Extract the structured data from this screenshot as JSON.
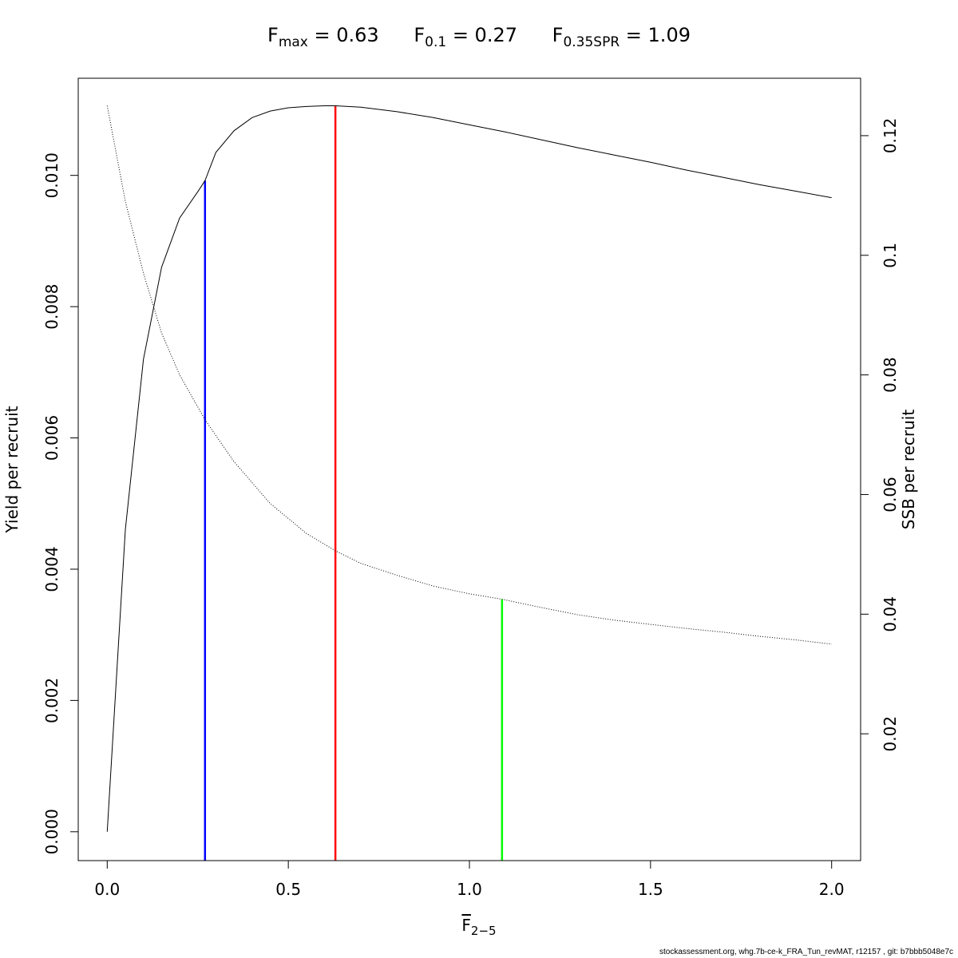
{
  "title": {
    "fmax": {
      "symbol": "F",
      "sub": "max",
      "eq": " = 0.63"
    },
    "f01": {
      "symbol": "F",
      "sub": "0.1",
      "eq": " = 0.27"
    },
    "fspr": {
      "symbol": "F",
      "sub": "0.35SPR",
      "eq": " = 1.09"
    }
  },
  "footer": "stockassessment.org, whg.7b-ce-k_FRA_Tun_revMAT, r12157 , git: b7bbb5048e7c",
  "chart_data": {
    "type": "line",
    "xlabel": {
      "symbol": "F",
      "sub": "2−5"
    },
    "ylabel_left": "Yield per recruit",
    "ylabel_right": "SSB per recruit",
    "xlim": [
      -0.08,
      2.08
    ],
    "ylim_left": [
      -0.00044,
      0.01148
    ],
    "ylim_right": [
      -0.0012,
      0.1296
    ],
    "x_ticks": [
      0,
      0.5,
      1,
      1.5,
      2
    ],
    "x_tick_labels": [
      "0.0",
      "0.5",
      "1.0",
      "1.5",
      "2.0"
    ],
    "y_left_ticks": [
      0,
      0.002,
      0.004,
      0.006,
      0.008,
      0.01
    ],
    "y_left_tick_labels": [
      "0.000",
      "0.002",
      "0.004",
      "0.006",
      "0.008",
      "0.010"
    ],
    "y_right_ticks": [
      0.02,
      0.04,
      0.06,
      0.08,
      0.1,
      0.12
    ],
    "y_right_tick_labels": [
      "0.02",
      "0.04",
      "0.06",
      "0.08",
      "0.1",
      "0.12"
    ],
    "series": [
      {
        "axis": "left",
        "style": "solid",
        "color": "#000000",
        "x": [
          0,
          0.05,
          0.1,
          0.15,
          0.2,
          0.25,
          0.27,
          0.3,
          0.35,
          0.4,
          0.45,
          0.5,
          0.55,
          0.6,
          0.63,
          0.7,
          0.8,
          0.9,
          1.0,
          1.1,
          1.2,
          1.3,
          1.4,
          1.5,
          1.6,
          1.7,
          1.8,
          1.9,
          2.0
        ],
        "y": [
          0,
          0.0046,
          0.0072,
          0.0086,
          0.00935,
          0.00975,
          0.00992,
          0.01035,
          0.01068,
          0.01088,
          0.01098,
          0.01103,
          0.01105,
          0.01106,
          0.01106,
          0.01104,
          0.01097,
          0.01088,
          0.01077,
          0.01066,
          0.01054,
          0.01042,
          0.01031,
          0.0102,
          0.01008,
          0.00997,
          0.00986,
          0.00976,
          0.00966
        ]
      },
      {
        "axis": "right",
        "style": "dotted",
        "color": "#000000",
        "x": [
          0,
          0.05,
          0.1,
          0.15,
          0.2,
          0.27,
          0.35,
          0.45,
          0.55,
          0.63,
          0.7,
          0.8,
          0.9,
          1.0,
          1.09,
          1.2,
          1.3,
          1.4,
          1.5,
          1.6,
          1.7,
          1.8,
          1.9,
          2.0
        ],
        "y": [
          0.125,
          0.109,
          0.097,
          0.087,
          0.08,
          0.0725,
          0.0655,
          0.0585,
          0.0535,
          0.0506,
          0.0485,
          0.0465,
          0.0447,
          0.0434,
          0.0425,
          0.0411,
          0.0399,
          0.039,
          0.0383,
          0.0376,
          0.037,
          0.0363,
          0.0357,
          0.035
        ]
      }
    ],
    "reference_lines": [
      {
        "x": 0.27,
        "y_top_left": 0.00992,
        "color": "#0000ff"
      },
      {
        "x": 0.63,
        "y_top_left": 0.01106,
        "color": "#ff0000"
      },
      {
        "x": 1.09,
        "y_top_right": 0.0425,
        "color": "#00ff00"
      }
    ]
  }
}
